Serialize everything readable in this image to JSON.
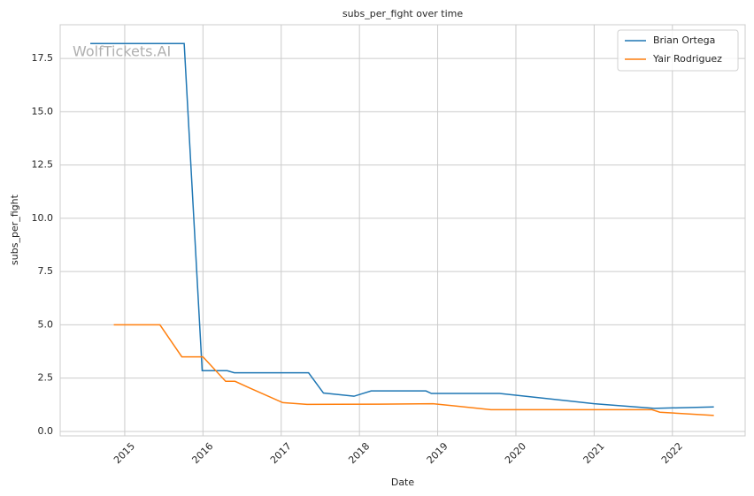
{
  "chart_data": {
    "type": "line",
    "title": "subs_per_fight over time",
    "xlabel": "Date",
    "ylabel": "subs_per_fight",
    "watermark": "WolfTickets.AI",
    "series": [
      {
        "name": "Brian Ortega",
        "color": "#1f77b4",
        "x": [
          2014.56,
          2015.76,
          2015.99,
          2016.31,
          2016.4,
          2017.35,
          2017.54,
          2017.93,
          2018.15,
          2018.85,
          2018.92,
          2019.79,
          2021.0,
          2021.77,
          2022.53
        ],
        "values": [
          18.2,
          18.2,
          2.85,
          2.85,
          2.75,
          2.75,
          1.8,
          1.65,
          1.9,
          1.9,
          1.78,
          1.78,
          1.3,
          1.08,
          1.15
        ]
      },
      {
        "name": "Yair Rodriguez",
        "color": "#ff7f0e",
        "x": [
          2014.86,
          2015.45,
          2015.73,
          2016.0,
          2016.29,
          2016.41,
          2016.59,
          2017.02,
          2017.33,
          2018.26,
          2018.94,
          2019.68,
          2021.74,
          2021.84,
          2022.53
        ],
        "values": [
          5.0,
          5.0,
          3.5,
          3.5,
          2.35,
          2.35,
          2.05,
          1.35,
          1.27,
          1.28,
          1.3,
          1.02,
          1.02,
          0.9,
          0.75
        ]
      }
    ],
    "xlim": [
      2014.175,
      2022.93
    ],
    "xticks": [
      2015,
      2016,
      2017,
      2018,
      2019,
      2020,
      2021,
      2022
    ],
    "ylim": [
      -0.21,
      19.08
    ],
    "yticks": [
      {
        "value": 0,
        "label": "0.0"
      },
      2.5,
      {
        "value": 5,
        "label": "5.0"
      },
      7.5,
      {
        "value": 10,
        "label": "10.0"
      },
      12.5,
      {
        "value": 15,
        "label": "15.0"
      },
      17.5
    ],
    "grid": true,
    "legend": "upper right"
  }
}
